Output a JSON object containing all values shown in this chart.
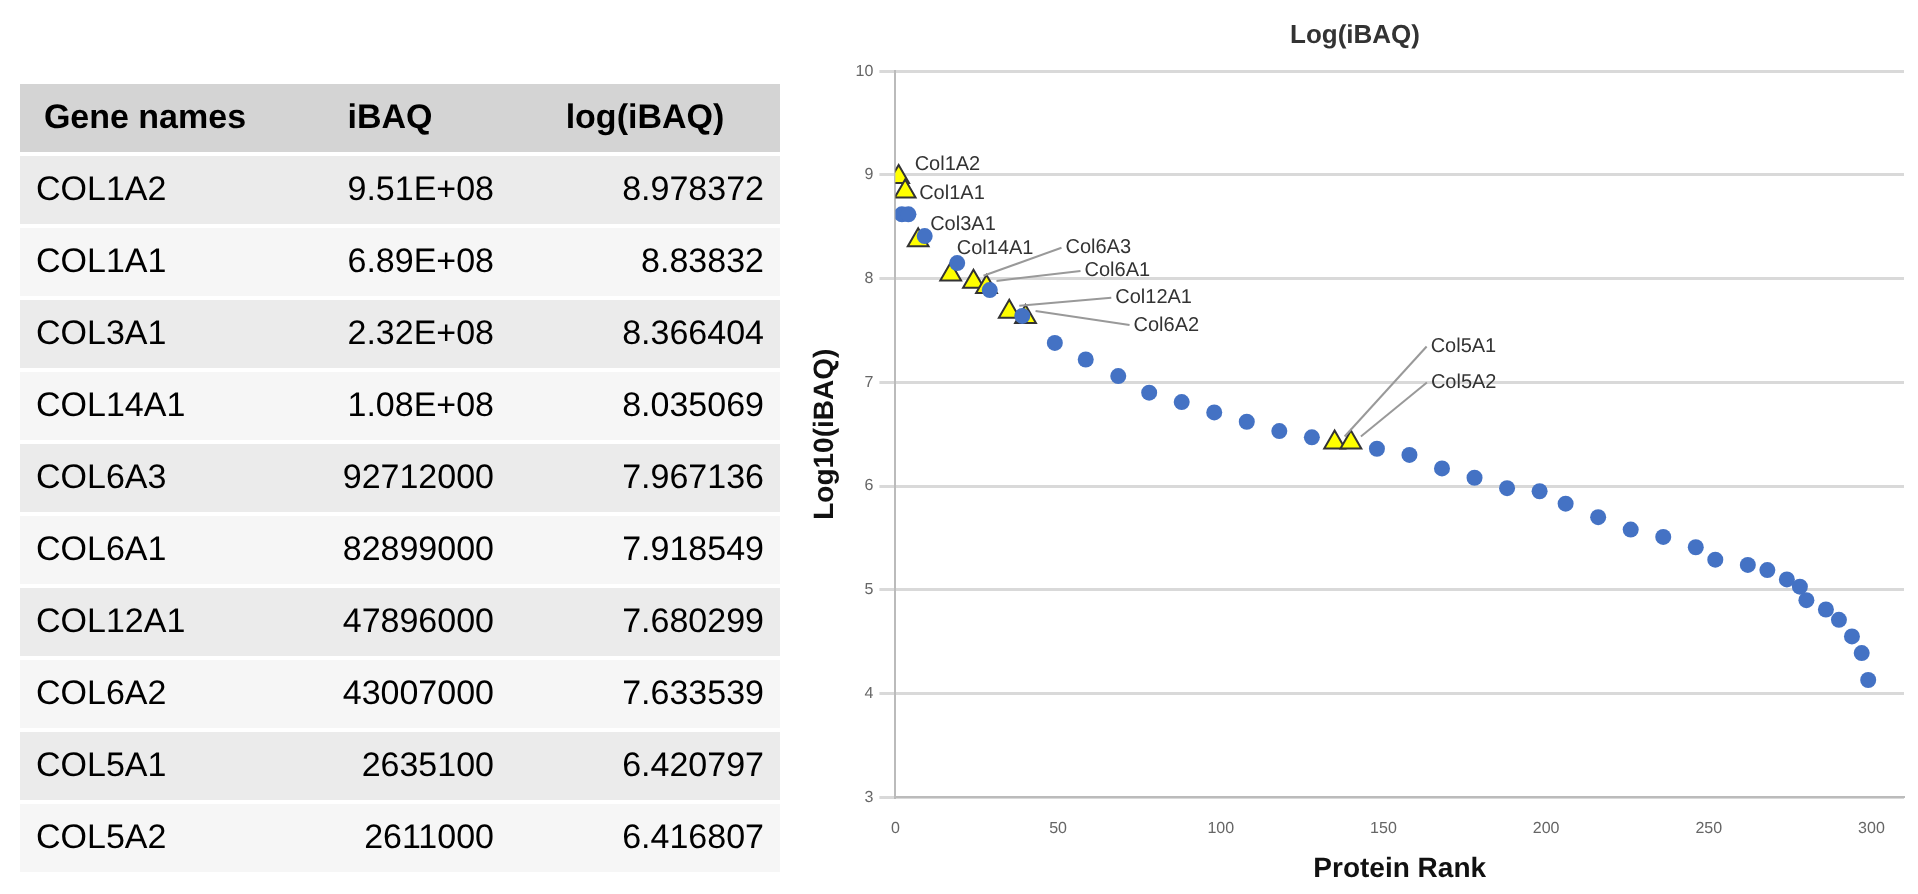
{
  "chart_data": [
    {
      "type": "other",
      "annotations": [
        "Gene names",
        "iBAQ",
        "log(iBAQ)",
        "COL1A2",
        "9.51E+08",
        "8.978372",
        "COL1A1",
        "6.89E+08",
        "8.83832",
        "COL3A1",
        "2.32E+08",
        "8.366404",
        "COL14A1",
        "1.08E+08",
        "8.035069",
        "COL6A3",
        "92712000",
        "7.967136",
        "COL6A1",
        "82899000",
        "7.918549",
        "COL12A1",
        "47896000",
        "7.680299",
        "COL6A2",
        "43007000",
        "7.633539",
        "COL5A1",
        "2635100",
        "6.420797",
        "COL5A2",
        "2611000",
        "6.416807"
      ]
    },
    {
      "type": "scatter",
      "title": "Log(iBAQ)",
      "xlabel": "Protein Rank",
      "ylabel": "Log10(iBAQ)",
      "xlim": [
        0,
        310
      ],
      "xticks": [
        0,
        50,
        100,
        150,
        200,
        250,
        300
      ],
      "ylim": [
        3,
        10
      ],
      "yticks": [
        3,
        4,
        5,
        6,
        7,
        8,
        9,
        10
      ],
      "grid": "y",
      "legend": false,
      "series": [
        {
          "color": "#4472c4",
          "marker": "circle",
          "x": [
            2,
            4,
            9,
            19,
            29,
            39,
            49,
            58.5,
            68.5,
            78,
            88,
            98,
            108,
            118,
            128,
            148,
            158,
            168,
            178,
            188,
            198,
            206,
            216,
            226,
            236,
            246,
            252,
            262,
            268,
            274,
            278,
            280,
            286,
            290,
            294,
            297,
            299
          ],
          "values": [
            8.62,
            8.62,
            8.41,
            8.15,
            7.89,
            7.64,
            7.38,
            7.22,
            7.06,
            6.9,
            6.81,
            6.71,
            6.62,
            6.53,
            6.47,
            6.36,
            6.3,
            6.17,
            6.08,
            5.98,
            5.95,
            5.83,
            5.7,
            5.58,
            5.51,
            5.41,
            5.29,
            5.24,
            5.19,
            5.1,
            5.03,
            4.9,
            4.81,
            4.71,
            4.55,
            4.39,
            4.13
          ]
        },
        {
          "color": "#ffff00",
          "marker": "triangle",
          "x": [
            1,
            3,
            7,
            17,
            24,
            28,
            35,
            40,
            135,
            140
          ],
          "values": [
            8.98,
            8.84,
            8.37,
            8.04,
            7.97,
            7.92,
            7.68,
            7.63,
            6.42,
            6.42
          ],
          "value_labels": [
            "Col1A2",
            "Col1A1",
            "Col3A1",
            "Col14A1",
            "Col6A3",
            "Col6A1",
            "Col12A1",
            "Col6A2",
            "Col5A1",
            "Col5A2"
          ]
        }
      ]
    }
  ]
}
